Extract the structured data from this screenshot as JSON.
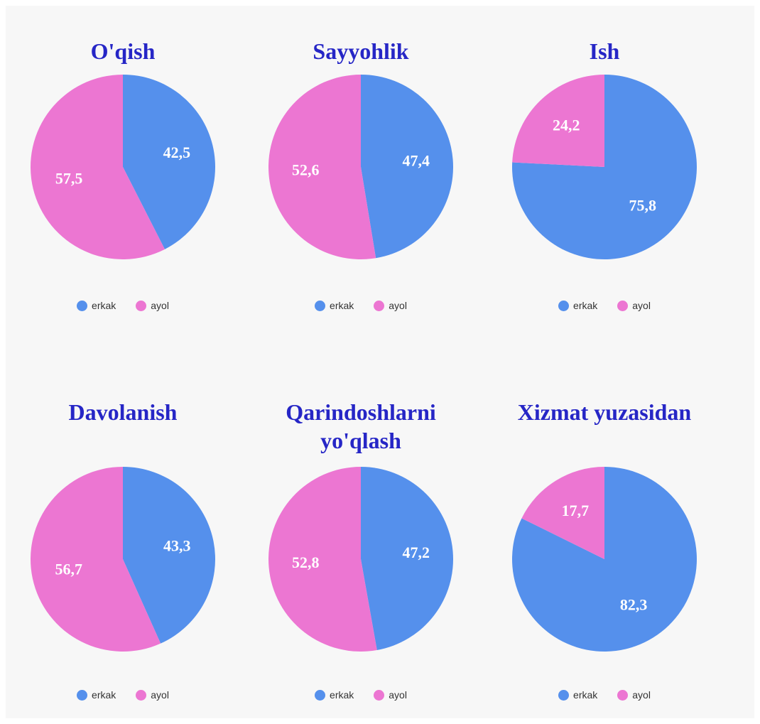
{
  "chart_data": [
    {
      "type": "pie",
      "title": "O'qish",
      "categories": [
        "erkak",
        "ayol"
      ],
      "values": [
        42.5,
        57.5
      ],
      "value_labels": [
        "42,5",
        "57,5"
      ],
      "colors": [
        "#5590ec",
        "#ec76d2"
      ]
    },
    {
      "type": "pie",
      "title": "Sayyohlik",
      "categories": [
        "erkak",
        "ayol"
      ],
      "values": [
        47.4,
        52.6
      ],
      "value_labels": [
        "47,4",
        "52,6"
      ],
      "colors": [
        "#5590ec",
        "#ec76d2"
      ]
    },
    {
      "type": "pie",
      "title": "Ish",
      "categories": [
        "erkak",
        "ayol"
      ],
      "values": [
        75.8,
        24.2
      ],
      "value_labels": [
        "75,8",
        "24,2"
      ],
      "colors": [
        "#5590ec",
        "#ec76d2"
      ]
    },
    {
      "type": "pie",
      "title": "Davolanish",
      "categories": [
        "erkak",
        "ayol"
      ],
      "values": [
        43.3,
        56.7
      ],
      "value_labels": [
        "43,3",
        "56,7"
      ],
      "colors": [
        "#5590ec",
        "#ec76d2"
      ]
    },
    {
      "type": "pie",
      "title": "Qarindoshlarni yo'qlash",
      "categories": [
        "erkak",
        "ayol"
      ],
      "values": [
        47.2,
        52.8
      ],
      "value_labels": [
        "47,2",
        "52,8"
      ],
      "colors": [
        "#5590ec",
        "#ec76d2"
      ]
    },
    {
      "type": "pie",
      "title": "Xizmat yuzasidan",
      "categories": [
        "erkak",
        "ayol"
      ],
      "values": [
        82.3,
        17.7
      ],
      "value_labels": [
        "82,3",
        "17,7"
      ],
      "colors": [
        "#5590ec",
        "#ec76d2"
      ]
    }
  ]
}
